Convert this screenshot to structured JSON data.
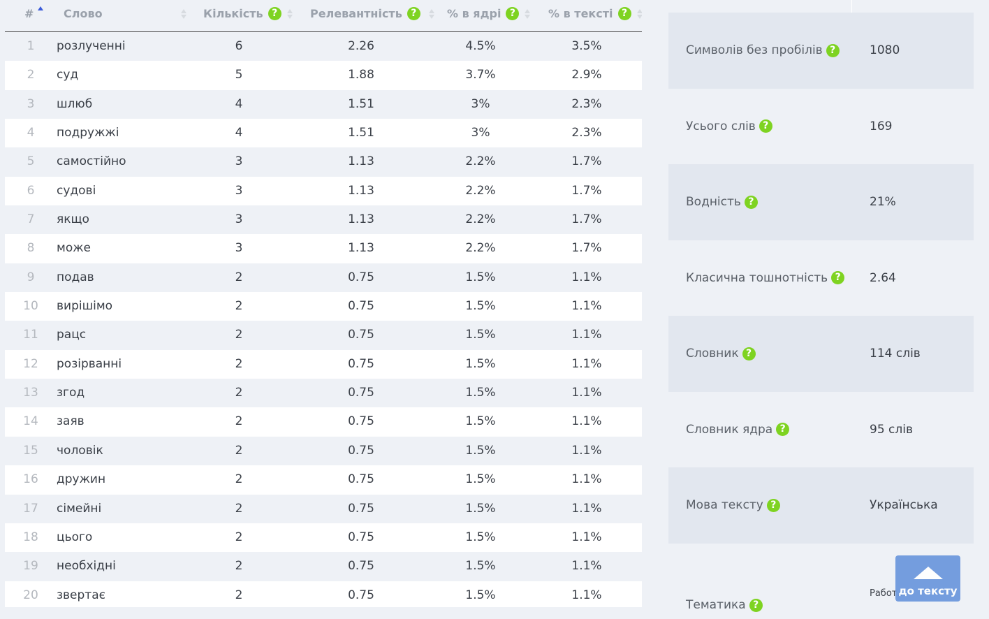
{
  "table": {
    "headers": {
      "num": "#",
      "word": "Слово",
      "count": "Кількість",
      "relevance": "Релевантність",
      "core_pct": "% в ядрі",
      "text_pct": "% в тексті"
    },
    "rows": [
      {
        "num": "1",
        "word": "розлученні",
        "count": "6",
        "relevance": "2.26",
        "core": "4.5%",
        "text": "3.5%"
      },
      {
        "num": "2",
        "word": "суд",
        "count": "5",
        "relevance": "1.88",
        "core": "3.7%",
        "text": "2.9%"
      },
      {
        "num": "3",
        "word": "шлюб",
        "count": "4",
        "relevance": "1.51",
        "core": "3%",
        "text": "2.3%"
      },
      {
        "num": "4",
        "word": "подружжі",
        "count": "4",
        "relevance": "1.51",
        "core": "3%",
        "text": "2.3%"
      },
      {
        "num": "5",
        "word": "самостійно",
        "count": "3",
        "relevance": "1.13",
        "core": "2.2%",
        "text": "1.7%"
      },
      {
        "num": "6",
        "word": "судові",
        "count": "3",
        "relevance": "1.13",
        "core": "2.2%",
        "text": "1.7%"
      },
      {
        "num": "7",
        "word": "якщо",
        "count": "3",
        "relevance": "1.13",
        "core": "2.2%",
        "text": "1.7%"
      },
      {
        "num": "8",
        "word": "може",
        "count": "3",
        "relevance": "1.13",
        "core": "2.2%",
        "text": "1.7%"
      },
      {
        "num": "9",
        "word": "подав",
        "count": "2",
        "relevance": "0.75",
        "core": "1.5%",
        "text": "1.1%"
      },
      {
        "num": "10",
        "word": "вирішімо",
        "count": "2",
        "relevance": "0.75",
        "core": "1.5%",
        "text": "1.1%"
      },
      {
        "num": "11",
        "word": "рацс",
        "count": "2",
        "relevance": "0.75",
        "core": "1.5%",
        "text": "1.1%"
      },
      {
        "num": "12",
        "word": "розірванні",
        "count": "2",
        "relevance": "0.75",
        "core": "1.5%",
        "text": "1.1%"
      },
      {
        "num": "13",
        "word": "згод",
        "count": "2",
        "relevance": "0.75",
        "core": "1.5%",
        "text": "1.1%"
      },
      {
        "num": "14",
        "word": "заяв",
        "count": "2",
        "relevance": "0.75",
        "core": "1.5%",
        "text": "1.1%"
      },
      {
        "num": "15",
        "word": "чоловік",
        "count": "2",
        "relevance": "0.75",
        "core": "1.5%",
        "text": "1.1%"
      },
      {
        "num": "16",
        "word": "дружин",
        "count": "2",
        "relevance": "0.75",
        "core": "1.5%",
        "text": "1.1%"
      },
      {
        "num": "17",
        "word": "сімейні",
        "count": "2",
        "relevance": "0.75",
        "core": "1.5%",
        "text": "1.1%"
      },
      {
        "num": "18",
        "word": "цього",
        "count": "2",
        "relevance": "0.75",
        "core": "1.5%",
        "text": "1.1%"
      },
      {
        "num": "19",
        "word": "необхідні",
        "count": "2",
        "relevance": "0.75",
        "core": "1.5%",
        "text": "1.1%"
      },
      {
        "num": "20",
        "word": "звертає",
        "count": "2",
        "relevance": "0.75",
        "core": "1.5%",
        "text": "1.1%"
      }
    ]
  },
  "stats": [
    {
      "label": "Символів без пробілів",
      "value": "1080"
    },
    {
      "label": "Усього слів",
      "value": "169"
    },
    {
      "label": "Водність",
      "value": "21%"
    },
    {
      "label": "Класична тошнотність",
      "value": "2.64"
    },
    {
      "label": "Словник",
      "value": "114 слів"
    },
    {
      "label": "Словник ядра",
      "value": "95 слів"
    },
    {
      "label": "Мова тексту",
      "value": "Українська"
    },
    {
      "label": "Тематика",
      "value": ""
    }
  ],
  "help_icon_glyph": "?",
  "partial_text": "Работ...",
  "scroll_button": {
    "label": "до тексту",
    "icon": "arrow-up-icon"
  },
  "colors": {
    "help_icon": "#7ed321",
    "sort_active": "#3b5bd9",
    "scroll_button": "#6b97dd"
  }
}
